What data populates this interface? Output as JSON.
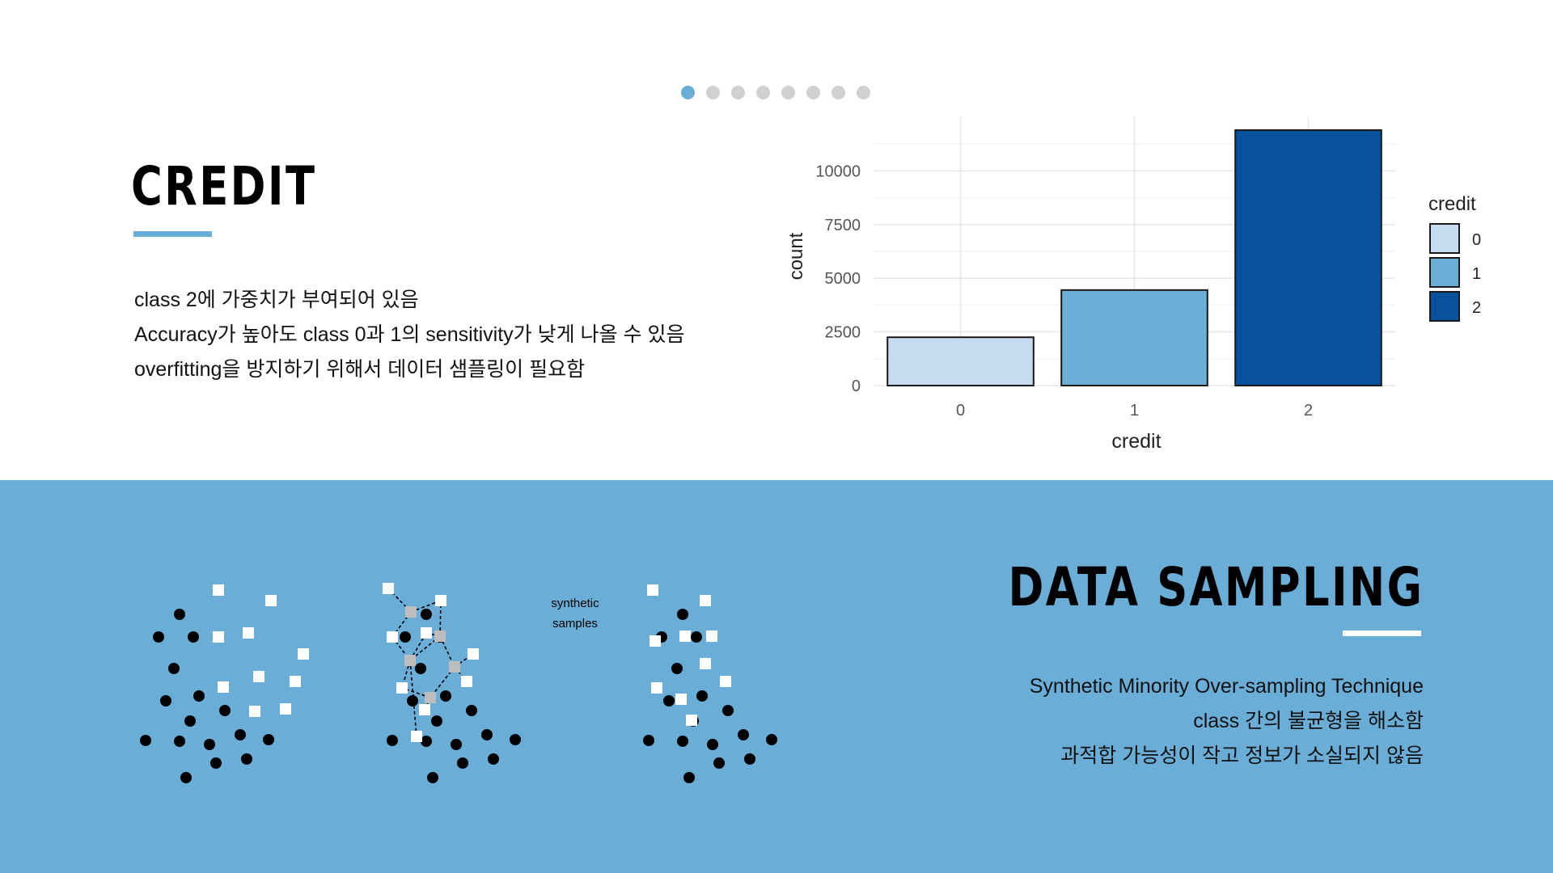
{
  "pagination": {
    "count": 8,
    "active": 0
  },
  "credit": {
    "title": "CREDIT",
    "lines": [
      "class 2에 가중치가 부여되어 있음",
      "Accuracy가 높아도 class 0과 1의 sensitivity가 낮게 나올 수 있음",
      "overfitting을 방지하기 위해서 데이터 샘플링이 필요함"
    ]
  },
  "chart_data": {
    "type": "bar",
    "categories": [
      "0",
      "1",
      "2"
    ],
    "values": [
      2250,
      4450,
      11900
    ],
    "colors": [
      "#c6dbef",
      "#6baed6",
      "#08519c"
    ],
    "xlabel": "credit",
    "ylabel": "count",
    "yticks": [
      0,
      2500,
      5000,
      7500,
      10000
    ],
    "ylim": [
      0,
      12500
    ],
    "legend": {
      "title": "credit",
      "entries": [
        "0",
        "1",
        "2"
      ],
      "position": "right"
    },
    "grid": true
  },
  "sampling": {
    "title": "DATA SAMPLING",
    "lines": [
      "Synthetic Minority Over-sampling Technique",
      "class 간의 불균형을 해소함",
      "과적합 가능성이 작고 정보가 소실되지 않음"
    ],
    "diagram_label_1": "synthetic",
    "diagram_label_2": "samples"
  },
  "colors": {
    "accent": "#6aadd6",
    "panel": "#6aadd6"
  }
}
